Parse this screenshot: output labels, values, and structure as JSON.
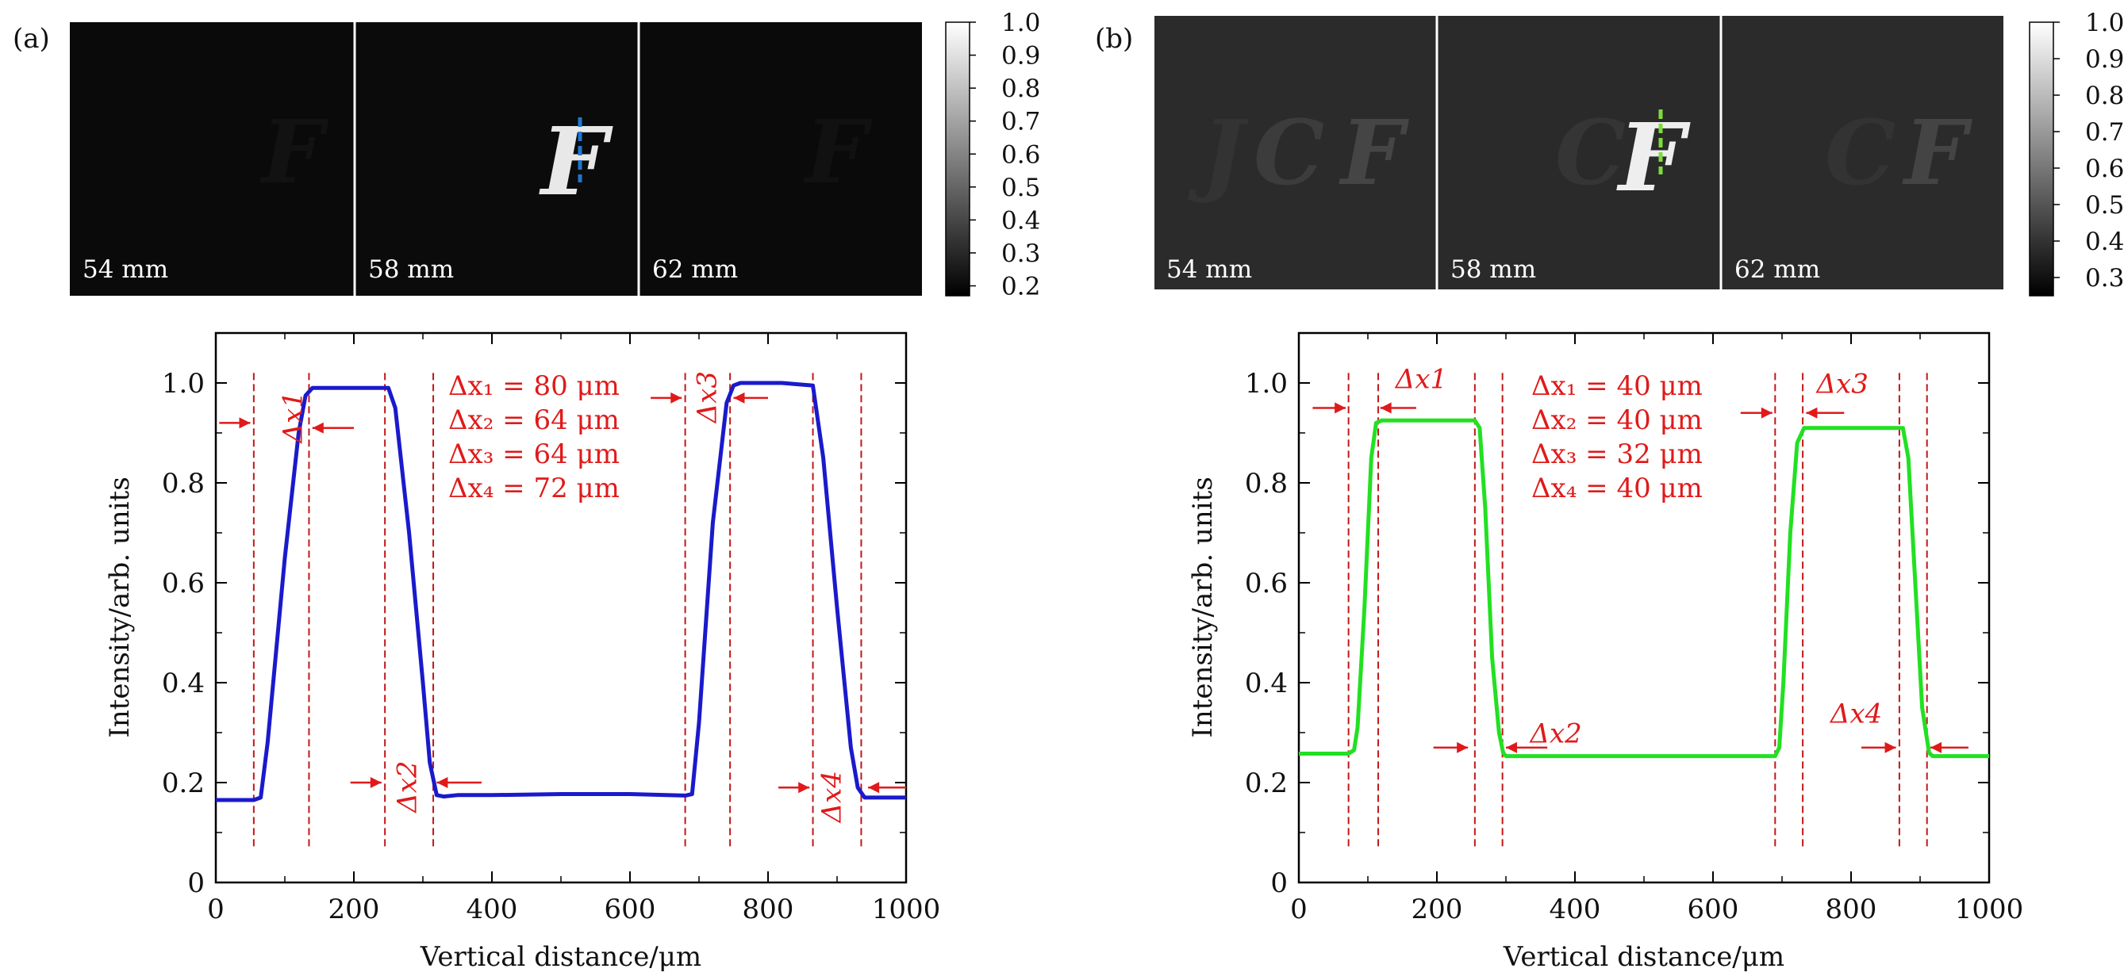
{
  "chart_data": [
    {
      "panel": "(a)",
      "type": "line",
      "images": {
        "labels": [
          "54 mm",
          "58 mm",
          "62 mm"
        ],
        "colorbar_ticks": [
          "1.0",
          "0.9",
          "0.8",
          "0.7",
          "0.6",
          "0.5",
          "0.4",
          "0.3",
          "0.2"
        ],
        "colorbar_range": [
          0.17,
          1.0
        ],
        "letter": "F",
        "marker_color": "#1f77d0"
      },
      "xlabel": "Vertical distance/μm",
      "ylabel": "Intensity/arb. units",
      "xlim": [
        0,
        1000
      ],
      "ylim": [
        0,
        1.1
      ],
      "xticks": [
        0,
        200,
        400,
        600,
        800,
        1000
      ],
      "yticks": [
        0,
        0.2,
        0.4,
        0.6,
        0.8,
        1.0
      ],
      "ytick_labels": [
        "0",
        "0.2",
        "0.4",
        "0.6",
        "0.8",
        "1.0"
      ],
      "series": [
        {
          "color": "#1a1acc",
          "x": [
            0,
            55,
            65,
            75,
            100,
            120,
            130,
            140,
            200,
            250,
            260,
            280,
            300,
            310,
            320,
            330,
            350,
            400,
            500,
            600,
            680,
            690,
            700,
            720,
            740,
            750,
            760,
            820,
            865,
            880,
            900,
            920,
            930,
            940,
            960,
            1000
          ],
          "y": [
            0.165,
            0.165,
            0.17,
            0.28,
            0.65,
            0.9,
            0.975,
            0.99,
            0.99,
            0.99,
            0.95,
            0.7,
            0.4,
            0.24,
            0.175,
            0.172,
            0.175,
            0.175,
            0.177,
            0.177,
            0.174,
            0.177,
            0.32,
            0.72,
            0.96,
            0.995,
            1.0,
            1.0,
            0.995,
            0.85,
            0.55,
            0.27,
            0.19,
            0.17,
            0.17,
            0.17
          ]
        }
      ],
      "vlines": [
        55,
        135,
        245,
        315,
        680,
        745,
        865,
        935
      ],
      "annotations": [
        {
          "text": "Δx₁ = 80 μm"
        },
        {
          "text": "Δx₂ = 64 μm"
        },
        {
          "text": "Δx₃ = 64 μm"
        },
        {
          "text": "Δx₄ = 72 μm"
        }
      ],
      "markers": [
        {
          "label": "Δx1",
          "x": 95,
          "y": 0.92,
          "rotated": true,
          "text": "Δx1"
        },
        {
          "label": "Δx2",
          "x": 280,
          "y": 0.22,
          "rotated": true,
          "text": "Δx2"
        },
        {
          "label": "Δx3",
          "x": 712,
          "y": 1.0,
          "rotated": true,
          "text": "Δx3"
        },
        {
          "label": "Δx4",
          "x": 900,
          "y": 0.21,
          "rotated": true,
          "text": "Δx4"
        }
      ]
    },
    {
      "panel": "(b)",
      "type": "line",
      "images": {
        "labels": [
          "54 mm",
          "58 mm",
          "62 mm"
        ],
        "colorbar_ticks": [
          "1.0",
          "0.9",
          "0.8",
          "0.7",
          "0.6",
          "0.5",
          "0.4",
          "0.3"
        ],
        "colorbar_range": [
          0.25,
          1.0
        ],
        "letter": "F",
        "marker_color": "#7ddc3a"
      },
      "xlabel": "Vertical distance/μm",
      "ylabel": "Intensity/arb. units",
      "xlim": [
        0,
        1000
      ],
      "ylim": [
        0,
        1.1
      ],
      "xticks": [
        0,
        200,
        400,
        600,
        800,
        1000
      ],
      "yticks": [
        0,
        0.2,
        0.4,
        0.6,
        0.8,
        1.0
      ],
      "ytick_labels": [
        "0",
        "0.2",
        "0.4",
        "0.6",
        "0.8",
        "1.0"
      ],
      "series": [
        {
          "color": "#22e022",
          "x": [
            0,
            72,
            80,
            85,
            95,
            105,
            112,
            120,
            200,
            255,
            262,
            270,
            280,
            290,
            296,
            300,
            350,
            500,
            690,
            696,
            702,
            712,
            722,
            732,
            800,
            875,
            883,
            893,
            903,
            913,
            918,
            1000
          ],
          "y": [
            0.258,
            0.258,
            0.265,
            0.31,
            0.55,
            0.85,
            0.92,
            0.925,
            0.925,
            0.925,
            0.91,
            0.75,
            0.45,
            0.3,
            0.26,
            0.253,
            0.253,
            0.253,
            0.253,
            0.27,
            0.4,
            0.7,
            0.88,
            0.91,
            0.91,
            0.91,
            0.85,
            0.6,
            0.35,
            0.26,
            0.253,
            0.253
          ]
        }
      ],
      "vlines": [
        72,
        115,
        255,
        295,
        690,
        730,
        870,
        910
      ],
      "annotations": [
        {
          "text": "Δx₁ = 40 μm"
        },
        {
          "text": "Δx₂ = 40 μm"
        },
        {
          "text": "Δx₃ = 32 μm"
        },
        {
          "text": "Δx₄ = 40 μm"
        }
      ],
      "markers": [
        {
          "label": "Δx1",
          "text": "Δx1"
        },
        {
          "label": "Δx2",
          "text": "Δx2"
        },
        {
          "label": "Δx3",
          "text": "Δx3"
        },
        {
          "label": "Δx4",
          "text": "Δx4"
        }
      ]
    }
  ]
}
